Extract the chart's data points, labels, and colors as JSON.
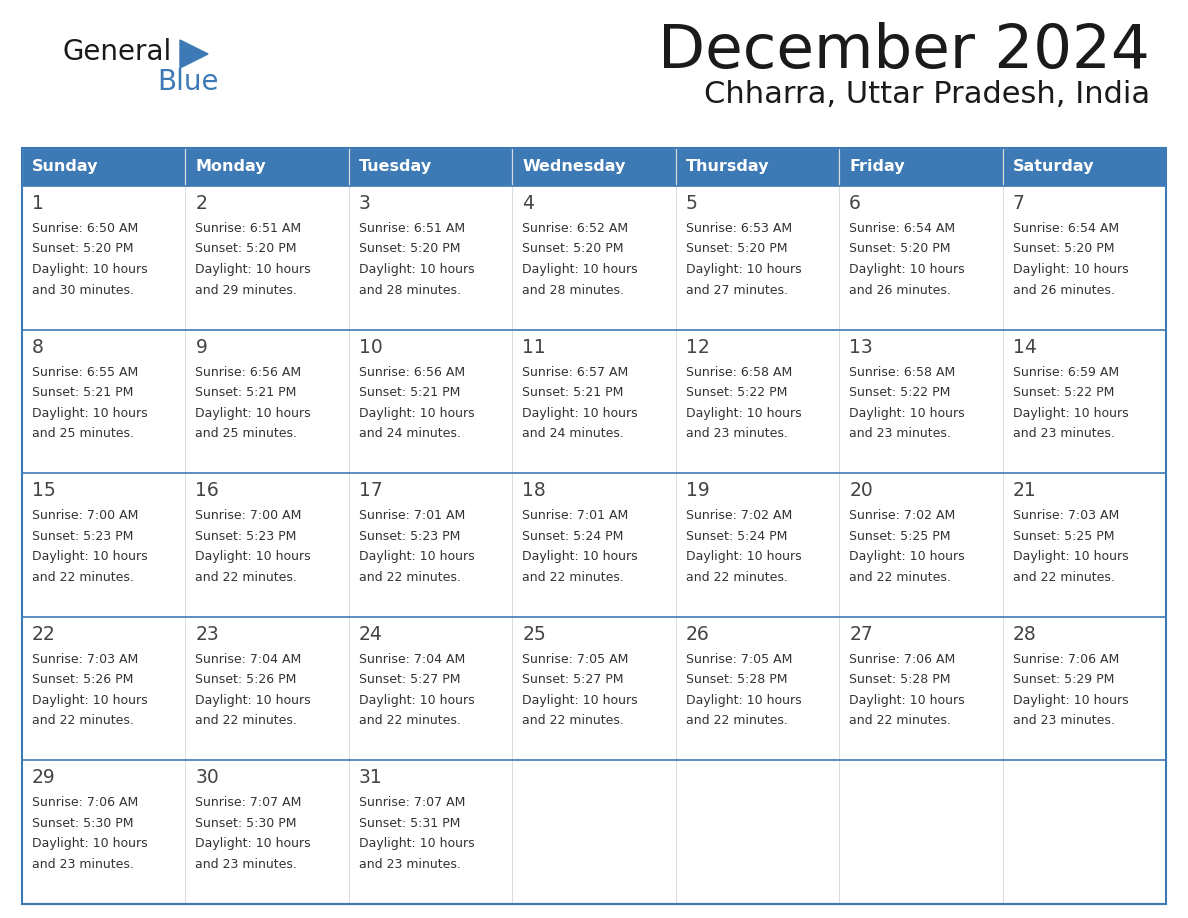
{
  "title": "December 2024",
  "subtitle": "Chharra, Uttar Pradesh, India",
  "header_color": "#3d7ab5",
  "header_text_color": "#ffffff",
  "border_color": "#3d7ab5",
  "text_color": "#444444",
  "days_of_week": [
    "Sunday",
    "Monday",
    "Tuesday",
    "Wednesday",
    "Thursday",
    "Friday",
    "Saturday"
  ],
  "calendar_data": [
    [
      {
        "day": 1,
        "sunrise": "6:50 AM",
        "sunset": "5:20 PM",
        "daylight_hours": 10,
        "daylight_minutes": 30
      },
      {
        "day": 2,
        "sunrise": "6:51 AM",
        "sunset": "5:20 PM",
        "daylight_hours": 10,
        "daylight_minutes": 29
      },
      {
        "day": 3,
        "sunrise": "6:51 AM",
        "sunset": "5:20 PM",
        "daylight_hours": 10,
        "daylight_minutes": 28
      },
      {
        "day": 4,
        "sunrise": "6:52 AM",
        "sunset": "5:20 PM",
        "daylight_hours": 10,
        "daylight_minutes": 28
      },
      {
        "day": 5,
        "sunrise": "6:53 AM",
        "sunset": "5:20 PM",
        "daylight_hours": 10,
        "daylight_minutes": 27
      },
      {
        "day": 6,
        "sunrise": "6:54 AM",
        "sunset": "5:20 PM",
        "daylight_hours": 10,
        "daylight_minutes": 26
      },
      {
        "day": 7,
        "sunrise": "6:54 AM",
        "sunset": "5:20 PM",
        "daylight_hours": 10,
        "daylight_minutes": 26
      }
    ],
    [
      {
        "day": 8,
        "sunrise": "6:55 AM",
        "sunset": "5:21 PM",
        "daylight_hours": 10,
        "daylight_minutes": 25
      },
      {
        "day": 9,
        "sunrise": "6:56 AM",
        "sunset": "5:21 PM",
        "daylight_hours": 10,
        "daylight_minutes": 25
      },
      {
        "day": 10,
        "sunrise": "6:56 AM",
        "sunset": "5:21 PM",
        "daylight_hours": 10,
        "daylight_minutes": 24
      },
      {
        "day": 11,
        "sunrise": "6:57 AM",
        "sunset": "5:21 PM",
        "daylight_hours": 10,
        "daylight_minutes": 24
      },
      {
        "day": 12,
        "sunrise": "6:58 AM",
        "sunset": "5:22 PM",
        "daylight_hours": 10,
        "daylight_minutes": 23
      },
      {
        "day": 13,
        "sunrise": "6:58 AM",
        "sunset": "5:22 PM",
        "daylight_hours": 10,
        "daylight_minutes": 23
      },
      {
        "day": 14,
        "sunrise": "6:59 AM",
        "sunset": "5:22 PM",
        "daylight_hours": 10,
        "daylight_minutes": 23
      }
    ],
    [
      {
        "day": 15,
        "sunrise": "7:00 AM",
        "sunset": "5:23 PM",
        "daylight_hours": 10,
        "daylight_minutes": 22
      },
      {
        "day": 16,
        "sunrise": "7:00 AM",
        "sunset": "5:23 PM",
        "daylight_hours": 10,
        "daylight_minutes": 22
      },
      {
        "day": 17,
        "sunrise": "7:01 AM",
        "sunset": "5:23 PM",
        "daylight_hours": 10,
        "daylight_minutes": 22
      },
      {
        "day": 18,
        "sunrise": "7:01 AM",
        "sunset": "5:24 PM",
        "daylight_hours": 10,
        "daylight_minutes": 22
      },
      {
        "day": 19,
        "sunrise": "7:02 AM",
        "sunset": "5:24 PM",
        "daylight_hours": 10,
        "daylight_minutes": 22
      },
      {
        "day": 20,
        "sunrise": "7:02 AM",
        "sunset": "5:25 PM",
        "daylight_hours": 10,
        "daylight_minutes": 22
      },
      {
        "day": 21,
        "sunrise": "7:03 AM",
        "sunset": "5:25 PM",
        "daylight_hours": 10,
        "daylight_minutes": 22
      }
    ],
    [
      {
        "day": 22,
        "sunrise": "7:03 AM",
        "sunset": "5:26 PM",
        "daylight_hours": 10,
        "daylight_minutes": 22
      },
      {
        "day": 23,
        "sunrise": "7:04 AM",
        "sunset": "5:26 PM",
        "daylight_hours": 10,
        "daylight_minutes": 22
      },
      {
        "day": 24,
        "sunrise": "7:04 AM",
        "sunset": "5:27 PM",
        "daylight_hours": 10,
        "daylight_minutes": 22
      },
      {
        "day": 25,
        "sunrise": "7:05 AM",
        "sunset": "5:27 PM",
        "daylight_hours": 10,
        "daylight_minutes": 22
      },
      {
        "day": 26,
        "sunrise": "7:05 AM",
        "sunset": "5:28 PM",
        "daylight_hours": 10,
        "daylight_minutes": 22
      },
      {
        "day": 27,
        "sunrise": "7:06 AM",
        "sunset": "5:28 PM",
        "daylight_hours": 10,
        "daylight_minutes": 22
      },
      {
        "day": 28,
        "sunrise": "7:06 AM",
        "sunset": "5:29 PM",
        "daylight_hours": 10,
        "daylight_minutes": 23
      }
    ],
    [
      {
        "day": 29,
        "sunrise": "7:06 AM",
        "sunset": "5:30 PM",
        "daylight_hours": 10,
        "daylight_minutes": 23
      },
      {
        "day": 30,
        "sunrise": "7:07 AM",
        "sunset": "5:30 PM",
        "daylight_hours": 10,
        "daylight_minutes": 23
      },
      {
        "day": 31,
        "sunrise": "7:07 AM",
        "sunset": "5:31 PM",
        "daylight_hours": 10,
        "daylight_minutes": 23
      },
      null,
      null,
      null,
      null
    ]
  ]
}
